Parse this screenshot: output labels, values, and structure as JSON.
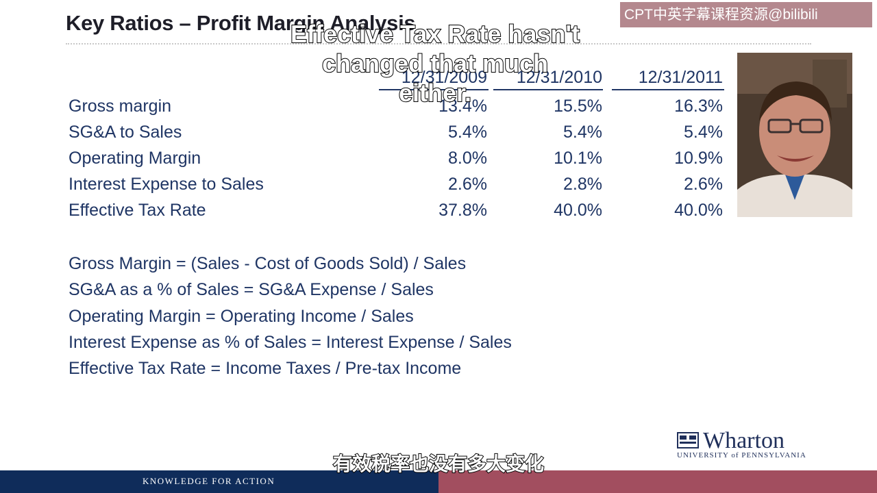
{
  "slide": {
    "title": "Key Ratios – Profit Margin Analysis",
    "watermark": "CPT中英字幕课程资源@bilibili",
    "subtitle_en_line1": "Effective Tax Rate hasn't",
    "subtitle_en_line2": "changed that much either.",
    "subtitle_cn": "有效税率也没有多大变化",
    "footer_text": "KNOWLEDGE FOR ACTION",
    "logo_word": "Wharton",
    "logo_sub": "UNIVERSITY of PENNSYLVANIA"
  },
  "table": {
    "columns": [
      "12/31/2009",
      "12/31/2010",
      "12/31/2011"
    ],
    "rows": [
      {
        "label": "Gross margin",
        "values": [
          "13.4%",
          "15.5%",
          "16.3%"
        ]
      },
      {
        "label": "SG&A to Sales",
        "values": [
          "5.4%",
          "5.4%",
          "5.4%"
        ]
      },
      {
        "label": "Operating Margin",
        "values": [
          "8.0%",
          "10.1%",
          "10.9%"
        ]
      },
      {
        "label": "Interest Expense to Sales",
        "values": [
          "2.6%",
          "2.8%",
          "2.6%"
        ]
      },
      {
        "label": "Effective Tax Rate",
        "values": [
          "37.8%",
          "40.0%",
          "40.0%"
        ]
      }
    ]
  },
  "formulas": [
    "Gross Margin = (Sales - Cost of Goods Sold) / Sales",
    "SG&A as a % of Sales = SG&A Expense / Sales",
    "Operating Margin = Operating Income / Sales",
    "Interest Expense as % of Sales = Interest Expense / Sales",
    "Effective Tax Rate = Income Taxes / Pre-tax Income"
  ],
  "colors": {
    "text": "#1f3564",
    "footer_left": "#0f2c5a",
    "footer_right": "#a24e5f"
  }
}
